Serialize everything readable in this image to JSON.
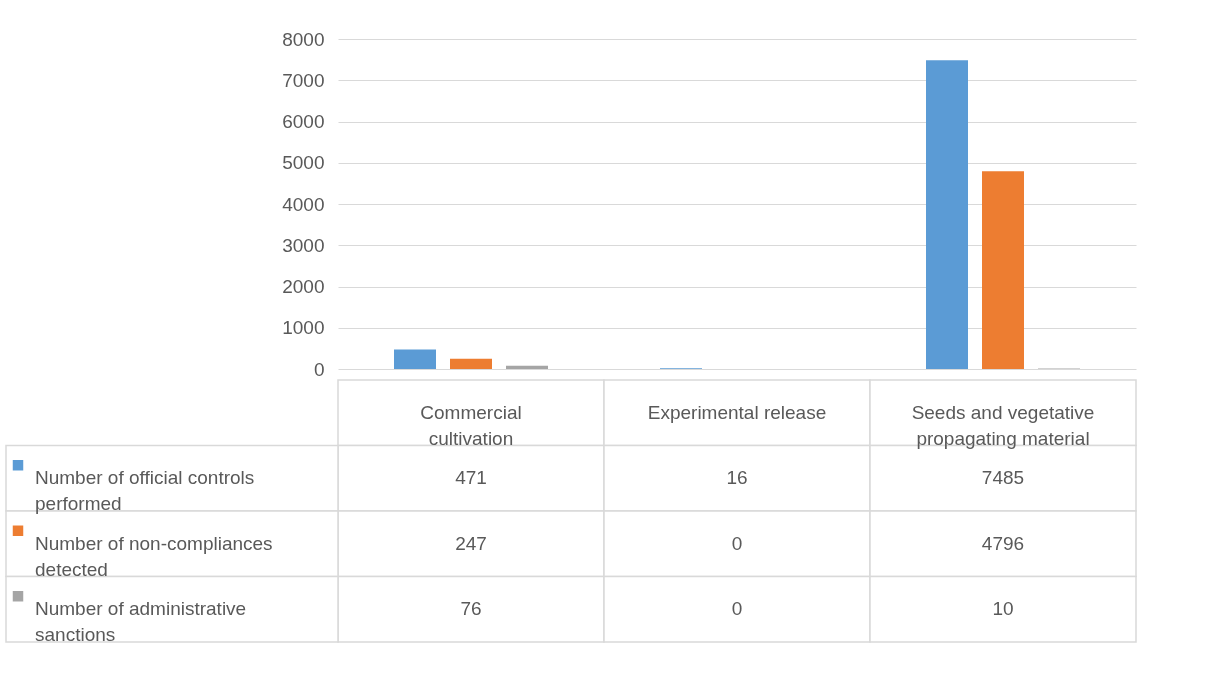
{
  "chart_data": {
    "type": "bar",
    "categories": [
      "Commercial cultivation",
      "Experimental release",
      "Seeds and vegetative propagating material"
    ],
    "series": [
      {
        "name": "Number of official controls performed",
        "color": "#5b9bd5",
        "values": [
          471,
          16,
          7485
        ]
      },
      {
        "name": "Number of non-compliances detected",
        "color": "#ed7d31",
        "values": [
          247,
          0,
          4796
        ]
      },
      {
        "name": "Number of administrative sanctions",
        "color": "#a5a5a5",
        "values": [
          76,
          0,
          10
        ]
      }
    ],
    "ylim": [
      0,
      8000
    ],
    "yticks": [
      0,
      1000,
      2000,
      3000,
      4000,
      5000,
      6000,
      7000,
      8000
    ],
    "grid": "y",
    "data_labels": true,
    "legend": "bottom left"
  }
}
